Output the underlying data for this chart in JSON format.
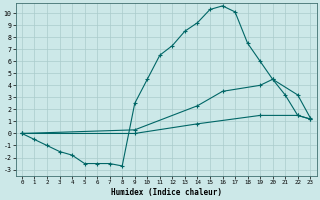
{
  "title": "",
  "xlabel": "Humidex (Indice chaleur)",
  "bg_color": "#cce8e8",
  "grid_color": "#aacccc",
  "line_color": "#006666",
  "xlim": [
    -0.5,
    23.5
  ],
  "ylim": [
    -3.5,
    10.8
  ],
  "xticks": [
    0,
    1,
    2,
    3,
    4,
    5,
    6,
    7,
    8,
    9,
    10,
    11,
    12,
    13,
    14,
    15,
    16,
    17,
    18,
    19,
    20,
    21,
    22,
    23
  ],
  "yticks": [
    -3,
    -2,
    -1,
    0,
    1,
    2,
    3,
    4,
    5,
    6,
    7,
    8,
    9,
    10
  ],
  "line1_x": [
    0,
    1,
    2,
    3,
    4,
    5,
    6,
    7,
    8,
    9,
    10,
    11,
    12,
    13,
    14,
    15,
    16,
    17,
    18,
    19,
    20,
    21,
    22,
    23
  ],
  "line1_y": [
    0,
    -0.5,
    -1.0,
    -1.5,
    -1.8,
    -2.5,
    -2.5,
    -2.5,
    -2.7,
    2.5,
    4.5,
    6.5,
    7.3,
    8.5,
    9.2,
    10.3,
    10.6,
    10.1,
    7.5,
    6.0,
    4.5,
    3.2,
    1.5,
    1.2
  ],
  "line2_x": [
    0,
    9,
    14,
    16,
    19,
    20,
    22,
    23
  ],
  "line2_y": [
    0,
    0.3,
    2.3,
    3.5,
    4.0,
    4.5,
    3.2,
    1.3
  ],
  "line3_x": [
    0,
    9,
    14,
    19,
    22,
    23
  ],
  "line3_y": [
    0,
    0.0,
    0.8,
    1.5,
    1.5,
    1.2
  ]
}
